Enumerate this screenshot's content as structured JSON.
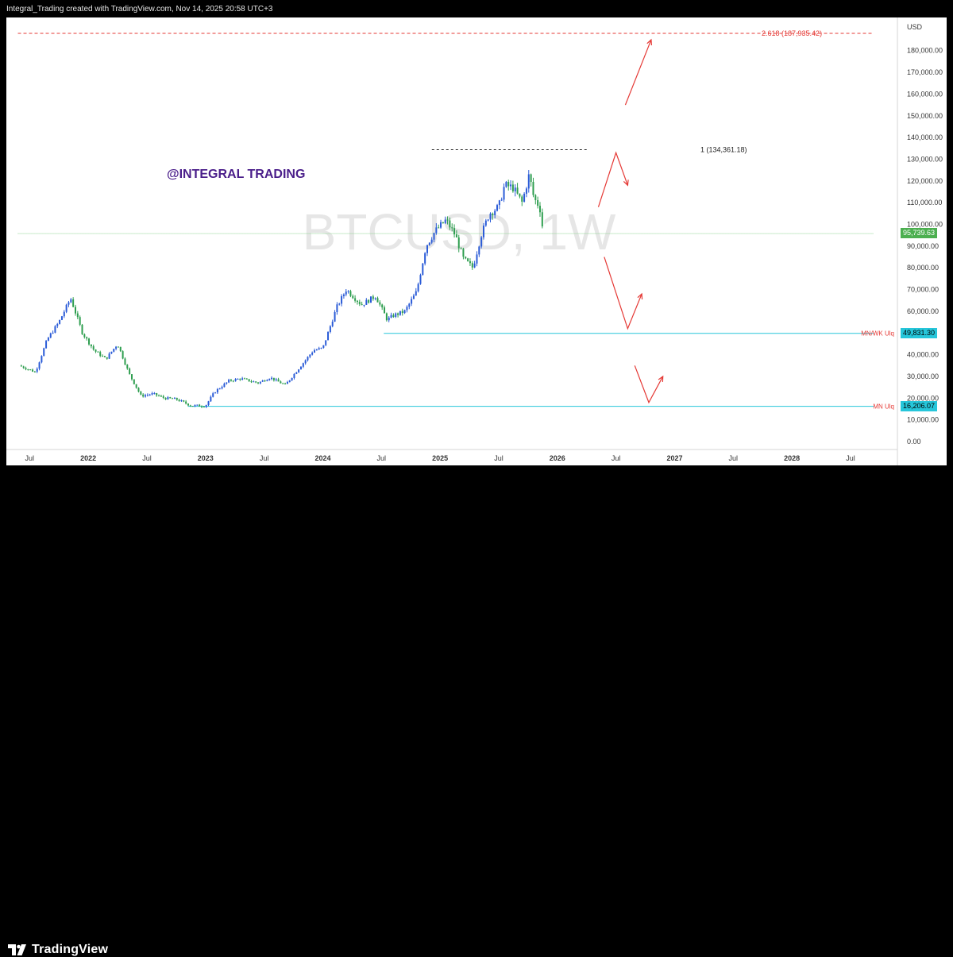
{
  "header": {
    "credit": "Integral_Trading created with TradingView.com, Nov 14, 2025 20:58 UTC+3"
  },
  "footer": {
    "brand": "TradingView"
  },
  "colors": {
    "up": "#2a5bd7",
    "down": "#2e9e4f",
    "accent_red": "#e53935",
    "liq_line": "#26c6da",
    "watermark": "#e6e6e6",
    "title_purple": "#4a1e8a",
    "price_badge": "#4caf50"
  },
  "chart_data": {
    "type": "candlestick",
    "symbol_watermark": "BTCUSD, 1W",
    "overlay_text": "@INTEGRAL TRADING",
    "currency": "USD",
    "ylim": [
      0,
      190000
    ],
    "y_ticks": [
      {
        "v": 180000,
        "label": "180,000.00"
      },
      {
        "v": 170000,
        "label": "170,000.00"
      },
      {
        "v": 160000,
        "label": "160,000.00"
      },
      {
        "v": 150000,
        "label": "150,000.00"
      },
      {
        "v": 140000,
        "label": "140,000.00"
      },
      {
        "v": 130000,
        "label": "130,000.00"
      },
      {
        "v": 120000,
        "label": "120,000.00"
      },
      {
        "v": 110000,
        "label": "110,000.00"
      },
      {
        "v": 100000,
        "label": "100,000.00"
      },
      {
        "v": 90000,
        "label": "90,000.00"
      },
      {
        "v": 80000,
        "label": "80,000.00"
      },
      {
        "v": 70000,
        "label": "70,000.00"
      },
      {
        "v": 60000,
        "label": "60,000.00"
      },
      {
        "v": 40000,
        "label": "40,000.00"
      },
      {
        "v": 30000,
        "label": "30,000.00"
      },
      {
        "v": 20000,
        "label": "20,000.00"
      },
      {
        "v": 10000,
        "label": "10,000.00"
      },
      {
        "v": 0,
        "label": "0.00"
      }
    ],
    "x_ticks": [
      {
        "t": 2021.5,
        "label": "Jul",
        "bold": false
      },
      {
        "t": 2022.0,
        "label": "2022",
        "bold": true
      },
      {
        "t": 2022.5,
        "label": "Jul",
        "bold": false
      },
      {
        "t": 2023.0,
        "label": "2023",
        "bold": true
      },
      {
        "t": 2023.5,
        "label": "Jul",
        "bold": false
      },
      {
        "t": 2024.0,
        "label": "2024",
        "bold": true
      },
      {
        "t": 2024.5,
        "label": "Jul",
        "bold": false
      },
      {
        "t": 2025.0,
        "label": "2025",
        "bold": true
      },
      {
        "t": 2025.5,
        "label": "Jul",
        "bold": false
      },
      {
        "t": 2026.0,
        "label": "2026",
        "bold": true
      },
      {
        "t": 2026.5,
        "label": "Jul",
        "bold": false
      },
      {
        "t": 2027.0,
        "label": "2027",
        "bold": true
      },
      {
        "t": 2027.5,
        "label": "Jul",
        "bold": false
      },
      {
        "t": 2028.0,
        "label": "2028",
        "bold": true
      },
      {
        "t": 2028.5,
        "label": "Jul",
        "bold": false
      }
    ],
    "price_path": [
      [
        2021.41,
        35000
      ],
      [
        2021.55,
        32000
      ],
      [
        2021.65,
        47000
      ],
      [
        2021.75,
        55000
      ],
      [
        2021.85,
        66000
      ],
      [
        2021.95,
        50000
      ],
      [
        2022.05,
        42000
      ],
      [
        2022.15,
        38000
      ],
      [
        2022.25,
        45000
      ],
      [
        2022.35,
        31000
      ],
      [
        2022.45,
        21000
      ],
      [
        2022.55,
        22000
      ],
      [
        2022.65,
        20000
      ],
      [
        2022.75,
        19500
      ],
      [
        2022.88,
        16500
      ],
      [
        2023.0,
        16500
      ],
      [
        2023.08,
        23000
      ],
      [
        2023.2,
        28000
      ],
      [
        2023.3,
        29000
      ],
      [
        2023.45,
        27000
      ],
      [
        2023.55,
        29500
      ],
      [
        2023.68,
        26000
      ],
      [
        2023.8,
        34000
      ],
      [
        2023.92,
        42000
      ],
      [
        2024.0,
        43000
      ],
      [
        2024.12,
        62000
      ],
      [
        2024.2,
        70000
      ],
      [
        2024.33,
        63000
      ],
      [
        2024.45,
        67000
      ],
      [
        2024.55,
        56000
      ],
      [
        2024.6,
        58000
      ],
      [
        2024.7,
        60000
      ],
      [
        2024.8,
        69000
      ],
      [
        2024.88,
        90000
      ],
      [
        2024.96,
        97000
      ],
      [
        2025.05,
        102000
      ],
      [
        2025.13,
        95000
      ],
      [
        2025.2,
        84000
      ],
      [
        2025.28,
        80000
      ],
      [
        2025.35,
        95000
      ],
      [
        2025.42,
        105000
      ],
      [
        2025.5,
        108000
      ],
      [
        2025.55,
        118000
      ],
      [
        2025.62,
        117000
      ],
      [
        2025.7,
        110000
      ],
      [
        2025.76,
        123000
      ],
      [
        2025.8,
        112000
      ],
      [
        2025.85,
        108000
      ],
      [
        2025.88,
        96000
      ]
    ],
    "levels": [
      {
        "name": "fib-2618",
        "price": 187935.42,
        "label": "2.618 (187,935.42)",
        "t_start": 2021.4,
        "t_end": 2028.7,
        "style": "dashed-red"
      },
      {
        "name": "fib-1",
        "price": 134361.18,
        "label": "1 (134,361.18)",
        "t_start": 2024.93,
        "t_end": 2026.25,
        "style": "dashed-black"
      },
      {
        "name": "current-price",
        "price": 95739.63,
        "label": "95,739.63",
        "t_start": 2021.4,
        "t_end": 2028.7,
        "style": "dotted-green"
      },
      {
        "name": "mn-wk-liq",
        "price": 49831.3,
        "label": "49,831.30",
        "tag": "MN/WK Ulq",
        "t_start": 2024.52,
        "t_end": 2028.7,
        "style": "solid-cyan"
      },
      {
        "name": "mn-liq",
        "price": 16206.07,
        "label": "16,206.07",
        "tag": "MN Ulq",
        "t_start": 2022.85,
        "t_end": 2028.7,
        "style": "solid-cyan"
      }
    ],
    "projection_arrows": [
      {
        "points": [
          [
            2026.58,
            155000
          ],
          [
            2026.8,
            185000
          ]
        ]
      },
      {
        "points": [
          [
            2026.35,
            108000
          ],
          [
            2026.5,
            133000
          ],
          [
            2026.6,
            118000
          ]
        ]
      },
      {
        "points": [
          [
            2026.4,
            85000
          ],
          [
            2026.6,
            52000
          ],
          [
            2026.72,
            68000
          ]
        ]
      },
      {
        "points": [
          [
            2026.66,
            35000
          ],
          [
            2026.78,
            18000
          ],
          [
            2026.9,
            30000
          ]
        ]
      }
    ]
  }
}
